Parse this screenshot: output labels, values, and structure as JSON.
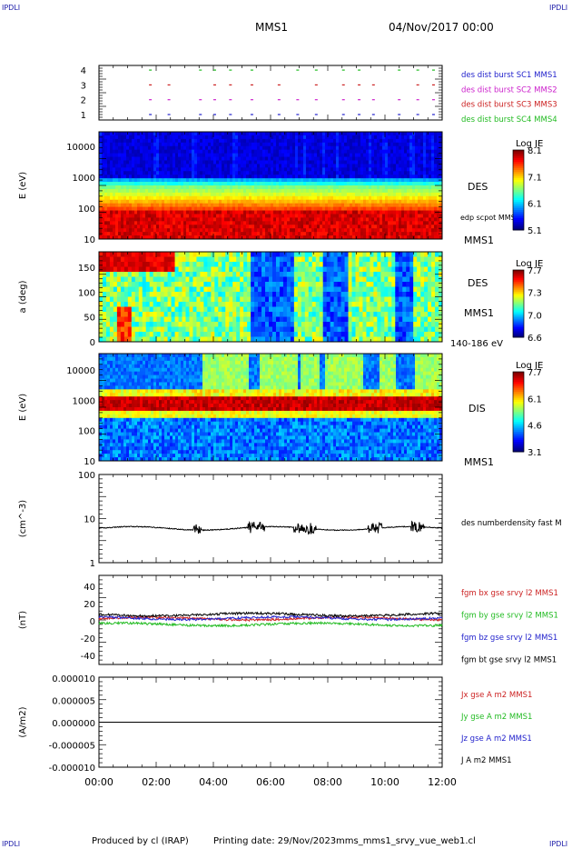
{
  "corner": {
    "tl": "IPDLI",
    "tr": "IPDLI",
    "bl": "IPDLI",
    "br": "IPDLI"
  },
  "header": {
    "spacecraft": "MMS1",
    "date": "04/Nov/2017 00:00"
  },
  "footer": {
    "produced_by": "Produced by cl (IRAP)",
    "printing_date": "Printing date: 29/Nov/2023",
    "script": "mms_mms1_srvy_vue_web1.cl"
  },
  "colors": {
    "sc1": "#2222cc",
    "sc2": "#cc22cc",
    "sc3": "#cc2222",
    "sc4": "#22bb22",
    "black": "#000000"
  },
  "chart_data": [
    {
      "type": "scatter",
      "id": "burst",
      "yticks": [
        "4",
        "3",
        "2",
        "1"
      ],
      "series": [
        {
          "name": "des dist burst SC1 MMS1",
          "y": 1,
          "color": "#2222cc"
        },
        {
          "name": "des dist burst SC2 MMS2",
          "y": 2,
          "color": "#cc22cc"
        },
        {
          "name": "des dist burst SC3 MMS3",
          "y": 3,
          "color": "#cc2222"
        },
        {
          "name": "des dist burst SC4 MMS4",
          "y": 4,
          "color": "#22bb22"
        }
      ],
      "intervals_hours": [
        [
          1.75,
          1.9
        ],
        [
          2.4,
          2.5
        ],
        [
          3.5,
          3.65
        ],
        [
          4.0,
          4.15
        ],
        [
          4.55,
          4.7
        ],
        [
          5.3,
          5.4
        ],
        [
          6.25,
          6.35
        ],
        [
          6.9,
          7.0
        ],
        [
          7.55,
          7.65
        ],
        [
          8.5,
          8.6
        ],
        [
          9.05,
          9.15
        ],
        [
          9.55,
          9.65
        ],
        [
          10.45,
          10.55
        ],
        [
          11.1,
          11.2
        ],
        [
          11.65,
          11.75
        ]
      ]
    },
    {
      "type": "heatmap",
      "id": "des_energy",
      "ylabel": "E (eV)",
      "yticks": [
        "10000",
        "1000",
        "100",
        "10"
      ],
      "instrument": "DES",
      "spacecraft": "MMS1",
      "overlay": "edp scpot MMS1",
      "colorbar": {
        "title": "Log JE",
        "ticks": [
          "8.1",
          "7.1",
          "6.1",
          "5.1"
        ]
      }
    },
    {
      "type": "heatmap",
      "id": "des_pitch",
      "ylabel": "a (deg)",
      "yticks": [
        "150",
        "100",
        "50",
        "0"
      ],
      "instrument": "DES",
      "spacecraft": "MMS1",
      "energy_range": "140-186 eV",
      "colorbar": {
        "title": "Log JE",
        "ticks": [
          "7.7",
          "7.3",
          "7.0",
          "6.6"
        ]
      }
    },
    {
      "type": "heatmap",
      "id": "dis_energy",
      "ylabel": "E (eV)",
      "yticks": [
        "10000",
        "1000",
        "100",
        "10"
      ],
      "instrument": "DIS",
      "spacecraft": "MMS1",
      "colorbar": {
        "title": "Log JE",
        "ticks": [
          "7.7",
          "6.1",
          "4.6",
          "3.1"
        ]
      }
    },
    {
      "type": "line",
      "id": "density",
      "ylabel": "(cm^-3)",
      "yticks": [
        "100",
        "10",
        "1"
      ],
      "series": [
        {
          "name": "des numberdensity fast M",
          "color": "#000000",
          "base": 6.0
        }
      ]
    },
    {
      "type": "line",
      "id": "fgm",
      "ylabel": "(nT)",
      "yticks": [
        "40",
        "20",
        "0",
        "-20",
        "-40"
      ],
      "ylim": [
        -50,
        50
      ],
      "series": [
        {
          "name": "fgm bx gse srvy l2 MMS1",
          "color": "#cc2222",
          "level": 1.5
        },
        {
          "name": "fgm by gse srvy l2 MMS1",
          "color": "#22bb22",
          "level": -5
        },
        {
          "name": "fgm bz gse srvy l2 MMS1",
          "color": "#2222cc",
          "level": 2
        },
        {
          "name": "fgm bt gse srvy l2 MMS1",
          "color": "#000000",
          "level": 6
        }
      ]
    },
    {
      "type": "line",
      "id": "current",
      "ylabel": "(A/m2)",
      "yticks": [
        "0.000010",
        "0.000005",
        "0.000000",
        "-0.000005",
        "-0.000010"
      ],
      "ylim": [
        -1e-05,
        1e-05
      ],
      "series": [
        {
          "name": "Jx gse A m2 MMS1",
          "color": "#cc2222"
        },
        {
          "name": "Jy gse A m2 MMS1",
          "color": "#22bb22"
        },
        {
          "name": "Jz gse A m2 MMS1",
          "color": "#2222cc"
        },
        {
          "name": "J A m2 MMS1",
          "color": "#000000"
        }
      ]
    }
  ],
  "xaxis": {
    "ticks": [
      "00:00",
      "02:00",
      "04:00",
      "06:00",
      "08:00",
      "10:00",
      "12:00"
    ],
    "range_hours": [
      0,
      12
    ]
  }
}
